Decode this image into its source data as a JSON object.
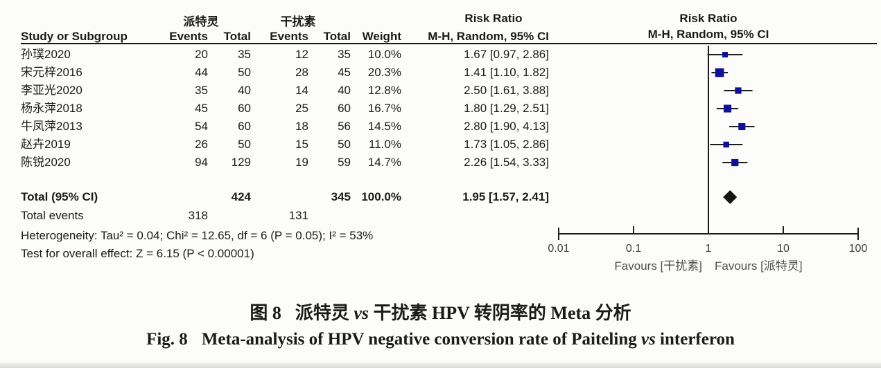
{
  "header": {
    "study": "Study or Subgroup",
    "group_experimental": "派特灵",
    "group_control": "干扰素",
    "events": "Events",
    "total": "Total",
    "weight": "Weight",
    "effect": "Risk Ratio",
    "method": "M-H, Random, 95% CI"
  },
  "studies": [
    {
      "name": "孙璞2020",
      "events_exp": "20",
      "total_exp": "35",
      "events_ctl": "12",
      "total_ctl": "35",
      "weight": "10.0%",
      "weight_pct": 10.0,
      "ci_text": "1.67 [0.97, 2.86]",
      "rr": 1.67,
      "lo": 0.97,
      "hi": 2.86
    },
    {
      "name": "宋元梓2016",
      "events_exp": "44",
      "total_exp": "50",
      "events_ctl": "28",
      "total_ctl": "45",
      "weight": "20.3%",
      "weight_pct": 20.3,
      "ci_text": "1.41 [1.10, 1.82]",
      "rr": 1.41,
      "lo": 1.1,
      "hi": 1.82
    },
    {
      "name": "李亚光2020",
      "events_exp": "35",
      "total_exp": "40",
      "events_ctl": "14",
      "total_ctl": "40",
      "weight": "12.8%",
      "weight_pct": 12.8,
      "ci_text": "2.50 [1.61, 3.88]",
      "rr": 2.5,
      "lo": 1.61,
      "hi": 3.88
    },
    {
      "name": "杨永萍2018",
      "events_exp": "45",
      "total_exp": "60",
      "events_ctl": "25",
      "total_ctl": "60",
      "weight": "16.7%",
      "weight_pct": 16.7,
      "ci_text": "1.80 [1.29, 2.51]",
      "rr": 1.8,
      "lo": 1.29,
      "hi": 2.51
    },
    {
      "name": "牛凤萍2013",
      "events_exp": "54",
      "total_exp": "60",
      "events_ctl": "18",
      "total_ctl": "56",
      "weight": "14.5%",
      "weight_pct": 14.5,
      "ci_text": "2.80 [1.90, 4.13]",
      "rr": 2.8,
      "lo": 1.9,
      "hi": 4.13
    },
    {
      "name": "赵卉2019",
      "events_exp": "26",
      "total_exp": "50",
      "events_ctl": "15",
      "total_ctl": "50",
      "weight": "11.0%",
      "weight_pct": 11.0,
      "ci_text": "1.73 [1.05, 2.86]",
      "rr": 1.73,
      "lo": 1.05,
      "hi": 2.86
    },
    {
      "name": "陈锐2020",
      "events_exp": "94",
      "total_exp": "129",
      "events_ctl": "19",
      "total_ctl": "59",
      "weight": "14.7%",
      "weight_pct": 14.7,
      "ci_text": "2.26 [1.54, 3.33]",
      "rr": 2.26,
      "lo": 1.54,
      "hi": 3.33
    }
  ],
  "total_row": {
    "label": "Total (95% CI)",
    "total_exp": "424",
    "total_ctl": "345",
    "weight": "100.0%",
    "ci_text": "1.95 [1.57, 2.41]",
    "rr": 1.95,
    "lo": 1.57,
    "hi": 2.41
  },
  "total_events": {
    "label": "Total events",
    "exp": "318",
    "ctl": "131"
  },
  "footer": {
    "heterogeneity": "Heterogeneity: Tau² = 0.04; Chi² = 12.65, df = 6 (P = 0.05); I² = 53%",
    "overall_effect": "Test for overall effect: Z = 6.15 (P < 0.00001)"
  },
  "axis": {
    "tick_labels": [
      "0.01",
      "0.1",
      "1",
      "10",
      "100"
    ],
    "tick_values": [
      0.01,
      0.1,
      1,
      10,
      100
    ],
    "favours_left": "Favours [干扰素]",
    "favours_right": "Favours [派特灵]"
  },
  "caption": {
    "line1_prefix": "图 8",
    "line1_pre_vs": "派特灵 ",
    "line1_vs": "vs",
    "line1_post_vs": " 干扰素 HPV 转阴率的 Meta 分析",
    "line2_prefix": "Fig. 8",
    "line2_pre_vs": "Meta-analysis of HPV negative conversion rate of Paiteling ",
    "line2_vs": "vs",
    "line2_post_vs": " interferon"
  },
  "colors": {
    "marker": "#10109a",
    "diamond": "#151515",
    "line": "#1d1d1d",
    "axis_text": "#3d3d3d",
    "favours_text": "#4f4f4f"
  },
  "chart_data": {
    "type": "forest",
    "title": "Risk Ratio",
    "model": "M-H, Random, 95% CI",
    "x_scale": "log10",
    "xlim": [
      0.01,
      100
    ],
    "x_ticks": [
      0.01,
      0.1,
      1,
      10,
      100
    ],
    "studies": [
      {
        "name": "孙璞2020",
        "rr": 1.67,
        "ci_low": 0.97,
        "ci_high": 2.86,
        "weight_pct": 10.0
      },
      {
        "name": "宋元梓2016",
        "rr": 1.41,
        "ci_low": 1.1,
        "ci_high": 1.82,
        "weight_pct": 20.3
      },
      {
        "name": "李亚光2020",
        "rr": 2.5,
        "ci_low": 1.61,
        "ci_high": 3.88,
        "weight_pct": 12.8
      },
      {
        "name": "杨永萍2018",
        "rr": 1.8,
        "ci_low": 1.29,
        "ci_high": 2.51,
        "weight_pct": 16.7
      },
      {
        "name": "牛凤萍2013",
        "rr": 2.8,
        "ci_low": 1.9,
        "ci_high": 4.13,
        "weight_pct": 14.5
      },
      {
        "name": "赵卉2019",
        "rr": 1.73,
        "ci_low": 1.05,
        "ci_high": 2.86,
        "weight_pct": 11.0
      },
      {
        "name": "陈锐2020",
        "rr": 2.26,
        "ci_low": 1.54,
        "ci_high": 3.33,
        "weight_pct": 14.7
      }
    ],
    "total": {
      "label": "Total (95% CI)",
      "rr": 1.95,
      "ci_low": 1.57,
      "ci_high": 2.41,
      "weight_pct": 100.0
    },
    "favours_left": "Favours [干扰素]",
    "favours_right": "Favours [派特灵]"
  }
}
